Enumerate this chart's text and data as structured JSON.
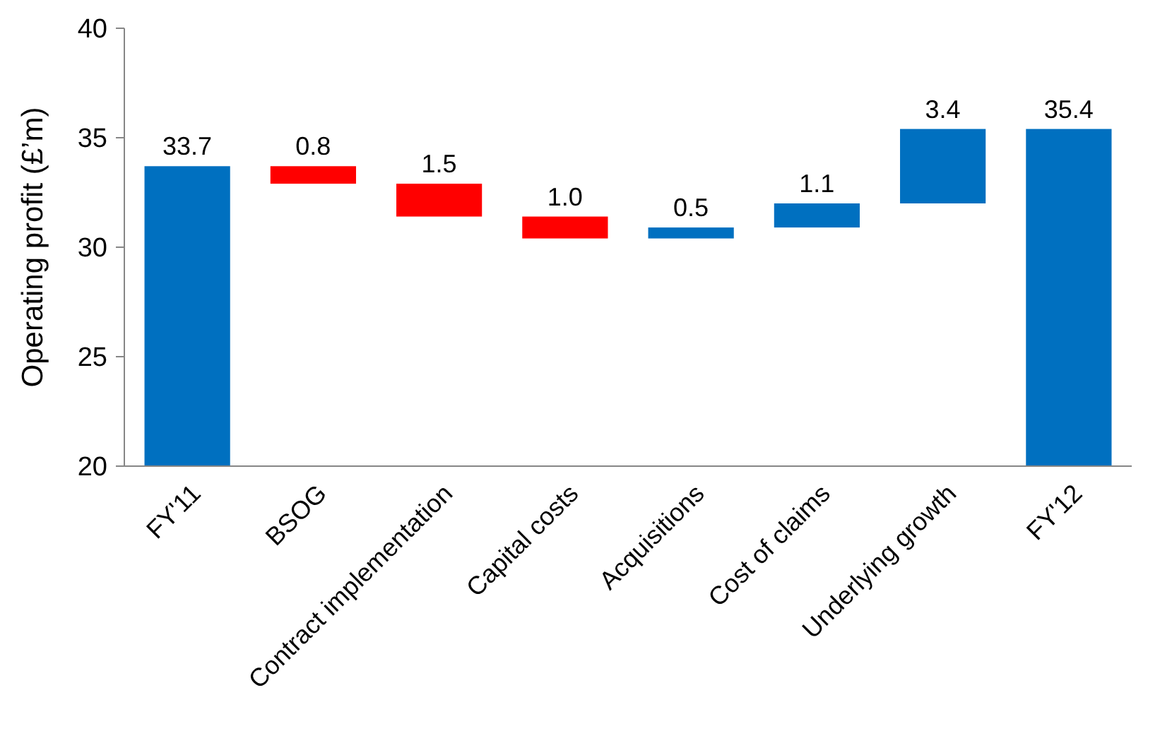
{
  "chart_data": {
    "type": "bar",
    "ylabel": "Operating profit (£’m)",
    "categories": [
      "FY'11",
      "BSOG",
      "Contract implementation",
      "Capital costs",
      "Acquisitions",
      "Cost of claims",
      "Underlying growth",
      "FY'12"
    ],
    "base": [
      20,
      33.7,
      32.9,
      31.4,
      30.4,
      30.9,
      32.0,
      20
    ],
    "values": [
      13.7,
      -0.8,
      -1.5,
      -1.0,
      0.5,
      1.1,
      3.4,
      15.4
    ],
    "value_labels": [
      "33.7",
      "0.8",
      "1.5",
      "1.0",
      "0.5",
      "1.1",
      "3.4",
      "35.4"
    ],
    "colors": [
      "#0070c0",
      "#ff0000",
      "#ff0000",
      "#ff0000",
      "#0070c0",
      "#0070c0",
      "#0070c0",
      "#0070c0"
    ],
    "ylim": [
      20,
      40
    ],
    "yticks": [
      20,
      25,
      30,
      35,
      40
    ],
    "grid": false
  }
}
